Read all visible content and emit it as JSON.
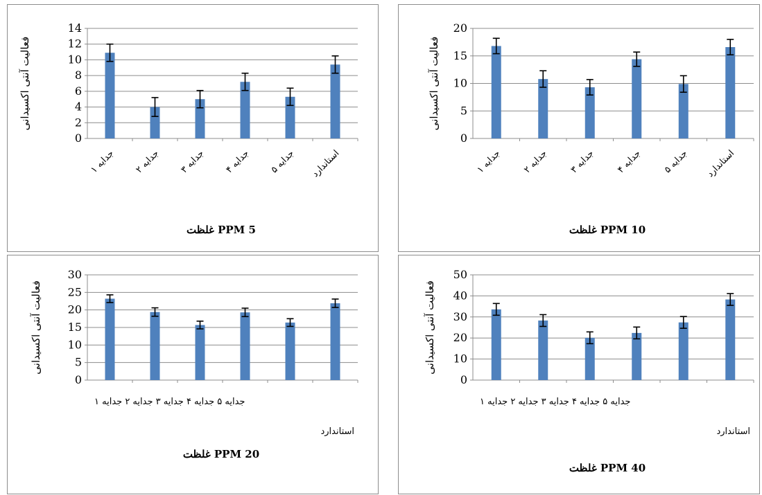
{
  "charts": [
    {
      "id": "tl",
      "chart_data": {
        "type": "bar",
        "categories": [
          "جدایه ۱",
          "جدایه ۲",
          "جدایه ۳",
          "جدایه ۴",
          "جدایه ۵",
          "استاندارد"
        ],
        "values": [
          10.9,
          4.0,
          5.0,
          7.2,
          5.3,
          9.4
        ],
        "errors": [
          1.1,
          1.2,
          1.1,
          1.1,
          1.1,
          1.1
        ],
        "ylim": [
          0,
          14
        ],
        "yticks": [
          0,
          2,
          4,
          6,
          8,
          10,
          12,
          14
        ],
        "ylabel": "فعالیت آنتی اکسیدانی",
        "caption": "غلظت PPM 5",
        "grid": true,
        "category_labels_rotated": true
      }
    },
    {
      "id": "tr",
      "chart_data": {
        "type": "bar",
        "categories": [
          "جدایه ۱",
          "جدایه ۲",
          "جدایه ۳",
          "جدایه ۴",
          "جدایه ۵",
          "استاندارد"
        ],
        "values": [
          16.8,
          10.8,
          9.3,
          14.4,
          9.9,
          16.6
        ],
        "errors": [
          1.4,
          1.5,
          1.4,
          1.3,
          1.5,
          1.4
        ],
        "ylim": [
          0,
          20
        ],
        "yticks": [
          0,
          5,
          10,
          15,
          20
        ],
        "ylabel": "فعالیت آنتی اکسیدانی",
        "caption": "غلظت PPM 10",
        "grid": true,
        "category_labels_rotated": true
      }
    },
    {
      "id": "bl",
      "chart_data": {
        "type": "bar",
        "categories": [
          "جدایه ۱",
          "جدایه ۲",
          "جدایه ۳",
          "جدایه ۴",
          "جدایه ۵",
          "استاندارد"
        ],
        "values": [
          23.2,
          19.4,
          15.7,
          19.3,
          16.4,
          21.9
        ],
        "errors": [
          1.1,
          1.2,
          1.1,
          1.2,
          1.1,
          1.2
        ],
        "ylim": [
          0,
          30
        ],
        "yticks": [
          0,
          5,
          10,
          15,
          20,
          25,
          30
        ],
        "ylabel": "فعالیت آنتی اکسیدانی",
        "caption": "غلظت PPM 20",
        "grid": true,
        "category_labels_rotated": false,
        "category_line": "جدایه ۵  جدایه ۴ جدایه ۳ جدایه ۲ جدایه ۱",
        "category_line2": "استاندارد"
      }
    },
    {
      "id": "br",
      "chart_data": {
        "type": "bar",
        "categories": [
          "جدایه ۱",
          "جدایه ۲",
          "جدایه ۳",
          "جدایه ۴",
          "جدایه ۵",
          "استاندارد"
        ],
        "values": [
          33.6,
          28.3,
          20.1,
          22.4,
          27.4,
          38.3
        ],
        "errors": [
          2.8,
          2.8,
          2.8,
          2.8,
          2.8,
          2.8
        ],
        "ylim": [
          0,
          50
        ],
        "yticks": [
          0,
          10,
          20,
          30,
          40,
          50
        ],
        "ylabel": "فعالیت آنتی اکسیدانی",
        "caption": "غلظت PPM 40",
        "grid": true,
        "category_labels_rotated": false,
        "category_line": "جدایه ۵  جدایه ۴ جدایه ۳ جدایه ۲ جدایه ۱",
        "category_line2": "استاندارد"
      }
    }
  ]
}
